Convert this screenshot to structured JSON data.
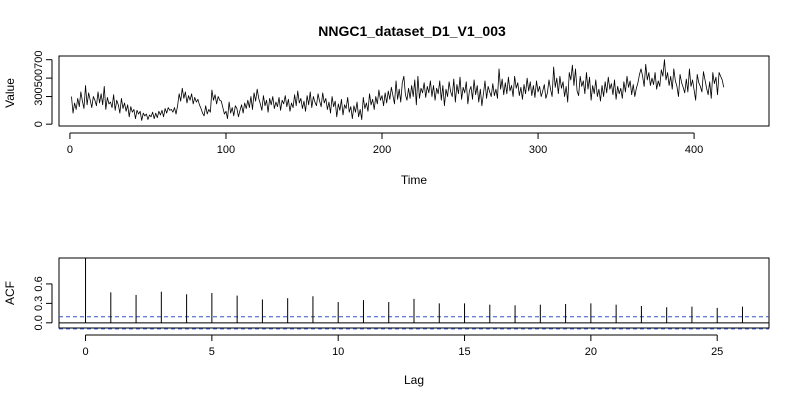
{
  "chart_data": [
    {
      "type": "line",
      "title": "NNGC1_dataset_D1_V1_003",
      "xlabel": "Time",
      "ylabel": "Value",
      "xlim": [
        -7,
        448
      ],
      "ylim": [
        -20,
        740
      ],
      "x_ticks": [
        0,
        100,
        200,
        300,
        400
      ],
      "x_tick_labels": [
        "0",
        "100",
        "200",
        "300",
        "400"
      ],
      "y_ticks": [
        0,
        300,
        500,
        700
      ],
      "y_tick_labels": [
        "0",
        "300",
        "500",
        "700"
      ],
      "grid": false,
      "series": [
        {
          "name": "Value",
          "x_start": 1,
          "values": [
            300,
            120,
            230,
            160,
            280,
            190,
            350,
            250,
            170,
            420,
            210,
            340,
            260,
            180,
            300,
            260,
            200,
            350,
            230,
            330,
            210,
            410,
            160,
            290,
            220,
            240,
            180,
            320,
            150,
            260,
            210,
            120,
            280,
            170,
            230,
            140,
            210,
            80,
            190,
            130,
            160,
            60,
            150,
            110,
            140,
            40,
            120,
            90,
            110,
            50,
            100,
            80,
            130,
            60,
            120,
            70,
            140,
            100,
            150,
            80,
            170,
            120,
            180,
            150,
            160,
            130,
            180,
            110,
            200,
            330,
            250,
            390,
            280,
            350,
            230,
            310,
            260,
            330,
            220,
            290,
            240,
            270,
            210,
            170,
            120,
            90,
            200,
            110,
            160,
            130,
            370,
            260,
            320,
            220,
            300,
            260,
            250,
            180,
            110,
            140,
            60,
            240,
            120,
            180,
            90,
            200,
            170,
            80,
            150,
            210,
            120,
            230,
            170,
            260,
            180,
            300,
            160,
            340,
            250,
            380,
            280,
            220,
            150,
            310,
            200,
            260,
            130,
            280,
            210,
            300,
            170,
            240,
            190,
            290,
            150,
            260,
            220,
            310,
            190,
            270,
            140,
            230,
            180,
            320,
            200,
            360,
            230,
            280,
            170,
            250,
            140,
            310,
            210,
            350,
            180,
            300,
            240,
            200,
            330,
            250,
            190,
            340,
            230,
            280,
            160,
            240,
            120,
            300,
            190,
            250,
            80,
            220,
            150,
            270,
            100,
            210,
            170,
            290,
            130,
            190,
            60,
            200,
            130,
            240,
            80,
            160,
            50,
            290,
            170,
            230,
            140,
            330,
            210,
            270,
            160,
            300,
            220,
            370,
            260,
            310,
            200,
            340,
            230,
            360,
            270,
            400,
            310,
            220,
            470,
            270,
            380,
            240,
            450,
            520,
            320,
            260,
            390,
            280,
            420,
            300,
            480,
            210,
            520,
            280,
            390,
            340,
            450,
            290,
            410,
            340,
            470,
            300,
            420,
            260,
            390,
            330,
            470,
            260,
            420,
            200,
            380,
            300,
            460,
            350,
            300,
            490,
            240,
            430,
            330,
            510,
            270,
            400,
            340,
            460,
            220,
            360,
            410,
            270,
            480,
            320,
            420,
            240,
            380,
            200,
            330,
            470,
            280,
            410,
            350,
            300,
            440,
            310,
            380,
            280,
            600,
            380,
            490,
            320,
            450,
            330,
            510,
            360,
            420,
            300,
            520,
            390,
            450,
            310,
            400,
            270,
            430,
            330,
            500,
            360,
            460,
            310,
            420,
            290,
            470,
            350,
            410,
            300,
            360,
            430,
            280,
            340,
            480,
            380,
            300,
            620,
            400,
            500,
            330,
            520,
            390,
            460,
            300,
            410,
            240,
            560,
            480,
            640,
            420,
            600,
            360,
            310,
            520,
            410,
            470,
            330,
            560,
            380,
            510,
            260,
            420,
            330,
            480,
            300,
            380,
            250,
            420,
            300,
            460,
            340,
            510,
            380,
            440,
            320,
            480,
            270,
            410,
            330,
            390,
            280,
            460,
            350,
            520,
            400,
            470,
            320,
            430,
            300,
            390,
            450,
            540,
            600,
            520,
            410,
            650,
            480,
            560,
            420,
            500,
            430,
            560,
            380,
            470,
            410,
            590,
            520,
            700,
            480,
            560,
            420,
            520,
            380,
            600,
            470,
            410,
            300,
            540,
            450,
            400,
            340,
            490,
            350,
            600,
            410,
            480,
            370,
            260,
            540,
            450,
            410,
            350,
            570,
            480,
            390,
            320,
            460,
            280,
            560,
            440,
            510,
            320,
            560,
            520,
            480,
            400
          ]
        }
      ]
    },
    {
      "type": "bar",
      "title": "",
      "xlabel": "Lag",
      "ylabel": "ACF",
      "xlim": [
        -1.05,
        27.05
      ],
      "ylim": [
        -0.08,
        1.0
      ],
      "x_ticks": [
        0,
        5,
        10,
        15,
        20,
        25
      ],
      "x_tick_labels": [
        "0",
        "5",
        "10",
        "15",
        "20",
        "25"
      ],
      "y_ticks": [
        0.0,
        0.3,
        0.6
      ],
      "y_tick_labels": [
        "0.0",
        "0.3",
        "0.6"
      ],
      "grid": false,
      "categories": [
        0,
        1,
        2,
        3,
        4,
        5,
        6,
        7,
        8,
        9,
        10,
        11,
        12,
        13,
        14,
        15,
        16,
        17,
        18,
        19,
        20,
        21,
        22,
        23,
        24,
        25,
        26
      ],
      "values": [
        1.0,
        0.47,
        0.43,
        0.48,
        0.44,
        0.46,
        0.42,
        0.36,
        0.38,
        0.41,
        0.32,
        0.35,
        0.32,
        0.37,
        0.3,
        0.3,
        0.28,
        0.27,
        0.28,
        0.29,
        0.3,
        0.28,
        0.26,
        0.24,
        0.25,
        0.23,
        0.25
      ],
      "confidence_bounds": [
        -0.094,
        0.094
      ],
      "zero_line": 0.0
    }
  ],
  "colors": {
    "series_line": "#000000",
    "acf_bars": "#000000",
    "confidence_line": "#3355cc",
    "frame": "#000000"
  }
}
